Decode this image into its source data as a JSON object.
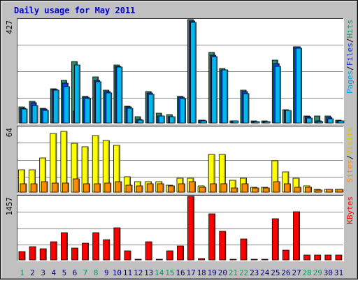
{
  "chart_data": {
    "type": "bar",
    "title": "Daily usage for May 2011",
    "categories": [
      "1",
      "2",
      "3",
      "4",
      "5",
      "6",
      "7",
      "8",
      "9",
      "10",
      "11",
      "12",
      "13",
      "14",
      "15",
      "16",
      "17",
      "18",
      "19",
      "20",
      "21",
      "22",
      "23",
      "24",
      "25",
      "26",
      "27",
      "28",
      "29",
      "30",
      "31"
    ],
    "weekend_days": [
      "1",
      "7",
      "8",
      "14",
      "15",
      "21",
      "22",
      "28",
      "29"
    ],
    "panels": [
      {
        "id": "hits-files-pages",
        "ymax_label": "427",
        "ylim": [
          0,
          427
        ],
        "axis_labels": [
          "Pages",
          "/",
          "Files",
          "/",
          "Hits"
        ],
        "series": [
          {
            "name": "Hits",
            "color": "#2e8b67",
            "values": [
              65,
              90,
              60,
              140,
              175,
              255,
              110,
              190,
              135,
              240,
              70,
              25,
              130,
              40,
              35,
              110,
              427,
              12,
              290,
              225,
              10,
              135,
              8,
              8,
              260,
              55,
              315,
              28,
              28,
              28,
              12
            ]
          },
          {
            "name": "Files",
            "color": "#1a3be0",
            "values": [
              62,
              85,
              57,
              138,
              165,
              50,
              108,
              175,
              130,
              235,
              65,
              15,
              125,
              30,
              25,
              108,
              420,
              12,
              280,
              220,
              8,
              130,
              7,
              7,
              245,
              52,
              315,
              25,
              10,
              22,
              10
            ]
          },
          {
            "name": "Pages",
            "color": "#00b8f0",
            "values": [
              58,
              72,
              52,
              135,
              150,
              240,
              100,
              170,
              125,
              232,
              60,
              12,
              118,
              28,
              25,
              102,
              415,
              10,
              275,
              218,
              8,
              120,
              7,
              7,
              235,
              52,
              310,
              20,
              6,
              18,
              8
            ]
          }
        ]
      },
      {
        "id": "visits-sites",
        "ymax_label": "64",
        "ylim": [
          0,
          64
        ],
        "axis_labels": [
          "Sites",
          "/",
          "Visits"
        ],
        "series": [
          {
            "name": "Visits",
            "color": "#ffff00",
            "values": [
              22,
              22,
              34,
              58,
              60,
              48,
              45,
              56,
              51,
              46,
              15,
              10,
              10,
              10,
              7,
              14,
              14,
              6,
              37,
              37,
              12,
              14,
              5,
              5,
              31,
              20,
              14,
              6,
              3,
              3,
              3
            ]
          },
          {
            "name": "Sites",
            "color": "#ff8c00",
            "values": [
              8,
              8,
              10,
              9,
              9,
              13,
              8,
              8,
              9,
              10,
              7,
              6,
              8,
              8,
              6,
              8,
              10,
              5,
              8,
              8,
              4,
              8,
              4,
              4,
              10,
              8,
              5,
              5,
              2,
              3,
              3
            ]
          }
        ]
      },
      {
        "id": "kbytes",
        "ymax_label": "1457",
        "ylim": [
          0,
          1457
        ],
        "axis_labels": [
          "KBytes"
        ],
        "series": [
          {
            "name": "KBytes",
            "color": "#ff0000",
            "values": [
              190,
              310,
              250,
              420,
              630,
              280,
              390,
              630,
              460,
              740,
              210,
              20,
              410,
              20,
              210,
              320,
              1457,
              25,
              1060,
              650,
              20,
              480,
              20,
              20,
              940,
              220,
              1110,
              120,
              120,
              120,
              120
            ]
          }
        ]
      }
    ]
  },
  "colors": {
    "background": "#c0c0c0",
    "plot": "#ffffff",
    "title": "#0000cc",
    "weekday_label": "#000080",
    "weekend_label": "#00a060",
    "gridline": "#8a8a8a"
  }
}
